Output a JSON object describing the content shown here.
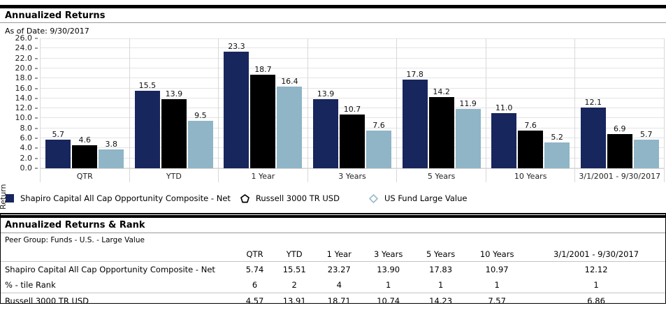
{
  "header": {
    "title": "Annualized Returns",
    "as_of": "As of Date: 9/30/2017"
  },
  "chart_data": {
    "type": "bar",
    "title": "Annualized Returns",
    "ylabel": "Return",
    "ylim": [
      0,
      26
    ],
    "ytick_step": 2,
    "grid": true,
    "legend_position": "bottom",
    "categories": [
      "QTR",
      "YTD",
      "1 Year",
      "3 Years",
      "5 Years",
      "10 Years",
      "3/1/2001 - 9/30/2017"
    ],
    "series": [
      {
        "name": "Shapiro Capital All Cap Opportunity Composite - Net",
        "color": "#18265E",
        "marker": "square",
        "values": [
          5.7,
          15.5,
          23.3,
          13.9,
          17.8,
          11.0,
          12.1
        ]
      },
      {
        "name": "Russell 3000 TR USD",
        "color": "#000000",
        "marker": "pentagon",
        "values": [
          4.6,
          13.9,
          18.7,
          10.7,
          14.2,
          7.6,
          6.9
        ]
      },
      {
        "name": "US Fund Large Value",
        "color": "#8FB5C7",
        "marker": "diamond",
        "values": [
          3.8,
          9.5,
          16.4,
          7.6,
          11.9,
          5.2,
          5.7
        ]
      }
    ]
  },
  "rank_section": {
    "title": "Annualized Returns & Rank",
    "peer_group": "Peer Group: Funds - U.S. - Large Value",
    "table": {
      "columns": [
        "QTR",
        "YTD",
        "1 Year",
        "3 Years",
        "5 Years",
        "10 Years",
        "3/1/2001 - 9/30/2017"
      ],
      "rows": [
        {
          "label": "Shapiro Capital All Cap Opportunity Composite - Net",
          "values": [
            "5.74",
            "15.51",
            "23.27",
            "13.90",
            "17.83",
            "10.97",
            "12.12"
          ],
          "rule_below": false
        },
        {
          "label": "% - tile Rank",
          "values": [
            "6",
            "2",
            "4",
            "1",
            "1",
            "1",
            "1"
          ],
          "rule_below": true
        },
        {
          "label": "Russell 3000 TR USD",
          "values": [
            "4.57",
            "13.91",
            "18.71",
            "10.74",
            "14.23",
            "7.57",
            "6.86"
          ],
          "rule_below": false
        }
      ]
    }
  },
  "colors": {
    "series1": "#18265E",
    "series2": "#000000",
    "series3": "#8FB5C7",
    "gridline": "#E4E4E4"
  }
}
